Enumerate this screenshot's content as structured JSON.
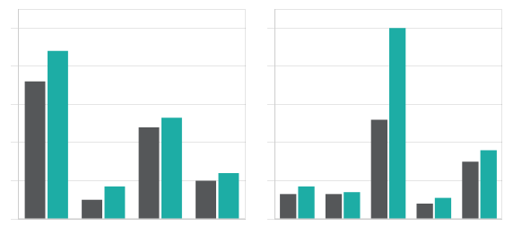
{
  "chart_data": [
    {
      "type": "bar",
      "categories": [
        null,
        null,
        null,
        null
      ],
      "series": [
        {
          "color": "#555759",
          "values": [
            0.72,
            0.1,
            0.48,
            0.2
          ]
        },
        {
          "color": "#1dada5",
          "values": [
            0.88,
            0.17,
            0.53,
            0.24
          ]
        }
      ],
      "ylim": [
        0,
        1.1
      ],
      "yticks": [
        0.0,
        0.2,
        0.4,
        0.6,
        0.8,
        1.0
      ],
      "grid": true,
      "tick_labels": false
    },
    {
      "type": "bar",
      "categories": [
        null,
        null,
        null,
        null,
        null
      ],
      "series": [
        {
          "color": "#555759",
          "values": [
            0.13,
            0.13,
            0.52,
            0.08,
            0.3
          ]
        },
        {
          "color": "#1dada5",
          "values": [
            0.17,
            0.14,
            1.0,
            0.11,
            0.36
          ]
        }
      ],
      "ylim": [
        0,
        1.1
      ],
      "yticks": [
        0.0,
        0.2,
        0.4,
        0.6,
        0.8,
        1.0
      ],
      "grid": true,
      "tick_labels": false
    }
  ]
}
